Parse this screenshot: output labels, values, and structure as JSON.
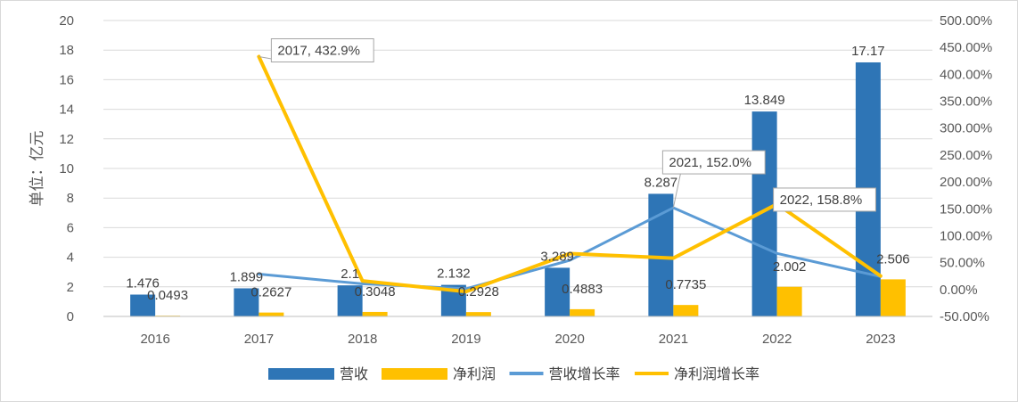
{
  "chart_data": {
    "type": "bar",
    "categories": [
      "2016",
      "2017",
      "2018",
      "2019",
      "2020",
      "2021",
      "2022",
      "2023"
    ],
    "ylabel": "单位：亿元",
    "ylim": [
      0,
      20
    ],
    "y_ticks": [
      "0",
      "2",
      "4",
      "6",
      "8",
      "10",
      "12",
      "14",
      "16",
      "18",
      "20"
    ],
    "y2lim": [
      -50,
      500
    ],
    "y2_ticks": [
      "-50.00%",
      "0.00%",
      "50.00%",
      "100.00%",
      "150.00%",
      "200.00%",
      "250.00%",
      "300.00%",
      "350.00%",
      "400.00%",
      "450.00%",
      "500.00%"
    ],
    "grid": true,
    "legend_position": "bottom",
    "series": [
      {
        "name": "营收",
        "type": "bar",
        "axis": "left",
        "color": "#2E75B6",
        "values": [
          1.476,
          1.899,
          2.1,
          2.132,
          3.289,
          8.287,
          13.849,
          17.17
        ],
        "labels": [
          "1.476",
          "1.899",
          "2.1",
          "2.132",
          "3.289",
          "8.287",
          "13.849",
          "17.17"
        ]
      },
      {
        "name": "净利润",
        "type": "bar",
        "axis": "left",
        "color": "#FFC000",
        "values": [
          0.0493,
          0.2627,
          0.3048,
          0.2928,
          0.4883,
          0.7735,
          2.002,
          2.506
        ],
        "labels": [
          "0.0493",
          "0.2627",
          "0.3048",
          "0.2928",
          "0.4883",
          "0.7735",
          "2.002",
          "2.506"
        ]
      },
      {
        "name": "营收增长率",
        "type": "line",
        "axis": "right",
        "color": "#5B9BD5",
        "x": [
          "2017",
          "2018",
          "2019",
          "2020",
          "2021",
          "2022",
          "2023"
        ],
        "values": [
          28.7,
          10.6,
          1.5,
          54.3,
          152.0,
          67.1,
          24.0
        ]
      },
      {
        "name": "净利润增长率",
        "type": "line",
        "axis": "right",
        "color": "#FFC000",
        "x": [
          "2017",
          "2018",
          "2019",
          "2020",
          "2021",
          "2022",
          "2023"
        ],
        "values": [
          432.9,
          16.0,
          -3.9,
          66.8,
          58.4,
          158.8,
          25.2
        ]
      }
    ],
    "annotations": [
      {
        "series": 3,
        "point": 0,
        "text": "2017, 432.9%"
      },
      {
        "series": 2,
        "point": 4,
        "text": "2021, 152.0%"
      },
      {
        "series": 3,
        "point": 5,
        "text": "2022, 158.8%"
      }
    ]
  }
}
